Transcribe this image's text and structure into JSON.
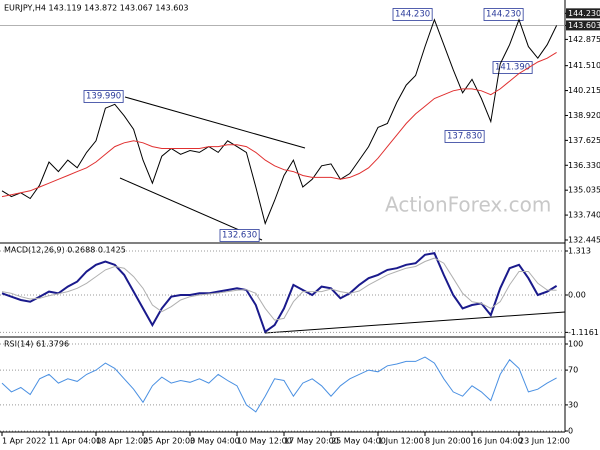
{
  "chart_data": [
    {
      "type": "line",
      "title": "EURJPY,H4 143.119 143.872 143.067 143.603",
      "series": [
        {
          "name": "Price",
          "color": "#000000",
          "values": [
            135.0,
            134.7,
            134.9,
            134.6,
            135.3,
            136.5,
            136.0,
            136.6,
            136.2,
            137.0,
            137.6,
            139.3,
            139.5,
            138.9,
            138.2,
            136.6,
            135.4,
            136.8,
            137.2,
            136.9,
            137.1,
            137.0,
            137.3,
            137.0,
            137.6,
            137.3,
            137.0,
            135.2,
            133.3,
            134.5,
            135.8,
            136.6,
            135.2,
            135.6,
            136.3,
            136.4,
            135.6,
            135.9,
            136.6,
            137.3,
            138.3,
            138.5,
            139.6,
            140.5,
            141.0,
            142.5,
            143.9,
            142.6,
            141.3,
            140.1,
            140.8,
            139.8,
            138.6,
            141.6,
            142.6,
            143.9,
            142.5,
            141.9,
            142.6,
            143.6
          ]
        },
        {
          "name": "MA",
          "color": "#e03030",
          "values": [
            134.7,
            134.8,
            134.9,
            135.0,
            135.2,
            135.4,
            135.6,
            135.8,
            136.0,
            136.2,
            136.5,
            136.9,
            137.3,
            137.5,
            137.6,
            137.5,
            137.3,
            137.2,
            137.2,
            137.2,
            137.2,
            137.2,
            137.3,
            137.3,
            137.4,
            137.4,
            137.3,
            137.0,
            136.6,
            136.3,
            136.1,
            136.0,
            135.8,
            135.7,
            135.7,
            135.7,
            135.6,
            135.7,
            135.9,
            136.2,
            136.7,
            137.3,
            137.9,
            138.5,
            139.0,
            139.4,
            139.8,
            140.0,
            140.2,
            140.3,
            140.3,
            140.2,
            140.0,
            140.3,
            140.7,
            141.1,
            141.4,
            141.7,
            141.9,
            142.2
          ]
        }
      ],
      "ylim": [
        132.34,
        144.82
      ],
      "yticks": [
        {
          "value": 144.23,
          "label": "144.230"
        },
        143.603,
        142.875,
        {
          "value": 141.51,
          "label": "141.510"
        },
        140.215,
        {
          "value": 138.92,
          "label": "138.920"
        },
        137.625,
        {
          "value": 136.33,
          "label": "136.330"
        },
        135.035,
        {
          "value": 133.74,
          "label": "133.740"
        },
        132.445
      ],
      "annotations": [
        "139.990",
        "132.630",
        "144.230",
        "144.230",
        "141.390",
        "137.830",
        "ActionForex.com"
      ]
    },
    {
      "type": "line",
      "title": "MACD(12,26,9) 0.2688 0.1425",
      "series": [
        {
          "name": "MACD",
          "color": "#1a1a8c",
          "values": [
            0.05,
            -0.05,
            -0.15,
            -0.2,
            -0.05,
            0.1,
            0.05,
            0.25,
            0.4,
            0.7,
            0.9,
            1.0,
            0.9,
            0.6,
            0.1,
            -0.4,
            -0.9,
            -0.4,
            -0.05,
            0.0,
            0.0,
            0.05,
            0.05,
            0.1,
            0.15,
            0.2,
            0.15,
            -0.3,
            -1.1,
            -0.9,
            -0.4,
            0.3,
            0.15,
            0.0,
            0.25,
            0.2,
            -0.1,
            0.05,
            0.3,
            0.5,
            0.6,
            0.75,
            0.8,
            0.9,
            0.95,
            1.2,
            1.25,
            0.6,
            0.0,
            -0.4,
            -0.3,
            -0.25,
            -0.6,
            0.2,
            0.8,
            0.9,
            0.5,
            0.0,
            0.1,
            0.27
          ]
        },
        {
          "name": "Signal",
          "color": "#b0b0b0",
          "values": [
            0.1,
            0.05,
            -0.05,
            -0.12,
            -0.1,
            -0.02,
            0.04,
            0.1,
            0.2,
            0.35,
            0.55,
            0.75,
            0.85,
            0.8,
            0.55,
            0.2,
            -0.3,
            -0.5,
            -0.35,
            -0.15,
            -0.05,
            0.0,
            0.03,
            0.06,
            0.1,
            0.14,
            0.16,
            0.05,
            -0.4,
            -0.75,
            -0.7,
            -0.2,
            0.1,
            0.1,
            0.1,
            0.18,
            0.1,
            0.05,
            0.12,
            0.3,
            0.45,
            0.6,
            0.7,
            0.8,
            0.85,
            1.0,
            1.1,
            0.95,
            0.5,
            0.05,
            -0.2,
            -0.25,
            -0.4,
            -0.2,
            0.3,
            0.7,
            0.7,
            0.35,
            0.15,
            0.14
          ]
        }
      ],
      "ylim": [
        -1.224,
        1.522
      ],
      "yticks": [
        1.313,
        {
          "value": 0,
          "label": "0.00"
        },
        -1.1161
      ]
    },
    {
      "type": "line",
      "title": "RSI(14) 61.3796",
      "series": [
        {
          "name": "RSI",
          "color": "#4a90e2",
          "values": [
            55,
            45,
            50,
            42,
            60,
            65,
            55,
            60,
            57,
            65,
            70,
            78,
            72,
            60,
            48,
            33,
            52,
            62,
            55,
            58,
            56,
            60,
            55,
            65,
            58,
            52,
            30,
            22,
            40,
            60,
            58,
            40,
            55,
            60,
            52,
            40,
            52,
            60,
            65,
            70,
            68,
            75,
            77,
            80,
            80,
            85,
            78,
            60,
            45,
            40,
            52,
            45,
            35,
            65,
            82,
            72,
            45,
            48,
            55,
            61
          ]
        }
      ],
      "ylim": [
        0,
        100
      ],
      "yticks": [
        100,
        70,
        30,
        0
      ],
      "xticks": [
        {
          "value": 0,
          "label": "1 Apr 2022"
        },
        {
          "value": 5,
          "label": "11 Apr 04:00"
        },
        {
          "value": 10,
          "label": "18 Apr 12:00"
        },
        {
          "value": 15,
          "label": "25 Apr 20:00"
        },
        {
          "value": 20,
          "label": "3 May 04:00"
        },
        {
          "value": 25,
          "label": "10 May 12:00"
        },
        {
          "value": 30,
          "label": "17 May 20:00"
        },
        {
          "value": 35,
          "label": "25 May 04:00"
        },
        {
          "value": 40,
          "label": "1 Jun 12:00"
        },
        {
          "value": 45,
          "label": "8 Jun 20:00"
        },
        {
          "value": 50,
          "label": "16 Jun 04:00"
        },
        {
          "value": 55,
          "label": "23 Jun 12:00"
        }
      ]
    }
  ]
}
